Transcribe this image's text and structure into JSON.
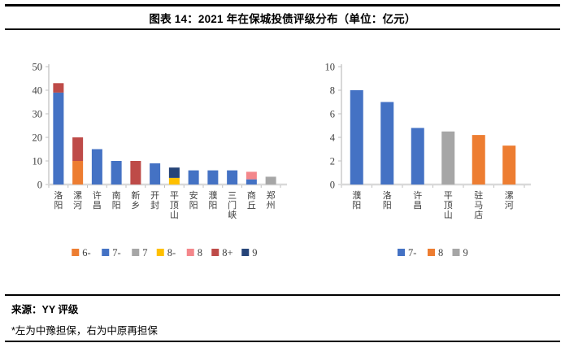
{
  "header": {
    "title": "图表 14：2021 年在保城投债评级分布（单位：亿元）"
  },
  "footer": {
    "source": "来源：YY 评级",
    "note": "*左为中豫担保，右为中原再担保"
  },
  "chart_data": [
    {
      "type": "bar",
      "stacked": true,
      "title": "",
      "xlabel": "",
      "ylabel": "",
      "categories": [
        "洛阳",
        "漯河",
        "许昌",
        "南阳",
        "新乡",
        "开封",
        "平顶山",
        "安阳",
        "濮阳",
        "三门峡",
        "商丘",
        "郑州"
      ],
      "series": [
        {
          "name": "6-",
          "color": "#ED7D31",
          "values": [
            0,
            10,
            0,
            0,
            0,
            0,
            0,
            0,
            0,
            0,
            0,
            0
          ]
        },
        {
          "name": "7-",
          "color": "#4472C4",
          "values": [
            39,
            0,
            15,
            10,
            0,
            9,
            0,
            6,
            6,
            6,
            2.2,
            0
          ]
        },
        {
          "name": "7",
          "color": "#A6A6A6",
          "values": [
            0,
            0,
            0,
            0,
            0,
            0,
            0,
            0,
            0,
            0,
            0,
            3.3
          ]
        },
        {
          "name": "8-",
          "color": "#FFC000",
          "values": [
            0,
            0,
            0,
            0,
            0,
            0,
            2.8,
            0,
            0,
            0,
            0,
            0
          ]
        },
        {
          "name": "8",
          "color": "#F4878B",
          "values": [
            0,
            0,
            0,
            0,
            0,
            0,
            0,
            0,
            0,
            0,
            3.2,
            0
          ]
        },
        {
          "name": "8+",
          "color": "#BE4B48",
          "values": [
            4,
            10,
            0,
            0,
            10,
            0,
            0,
            0,
            0,
            0,
            0,
            0
          ]
        },
        {
          "name": "9",
          "color": "#264478",
          "values": [
            0,
            0,
            0,
            0,
            0,
            0,
            4.4,
            0,
            0,
            0,
            0,
            0
          ]
        }
      ],
      "ylim": [
        0,
        50
      ],
      "yticks": [
        0,
        10,
        20,
        30,
        40,
        50
      ],
      "grid": false,
      "legend_position": "bottom"
    },
    {
      "type": "bar",
      "stacked": false,
      "title": "",
      "xlabel": "",
      "ylabel": "",
      "categories": [
        "濮阳",
        "洛阳",
        "许昌",
        "平顶山",
        "驻马店",
        "漯河"
      ],
      "series": [
        {
          "name": "7-",
          "color": "#4472C4",
          "values": [
            8,
            7,
            4.8,
            0,
            0,
            0
          ]
        },
        {
          "name": "8",
          "color": "#ED7D31",
          "values": [
            0,
            0,
            0,
            0,
            4.2,
            3.3
          ]
        },
        {
          "name": "9",
          "color": "#A6A6A6",
          "values": [
            0,
            0,
            0,
            4.5,
            0,
            0
          ]
        }
      ],
      "ylim": [
        0,
        10
      ],
      "yticks": [
        0,
        2,
        4,
        6,
        8,
        10
      ],
      "grid": false,
      "legend_position": "bottom"
    }
  ]
}
